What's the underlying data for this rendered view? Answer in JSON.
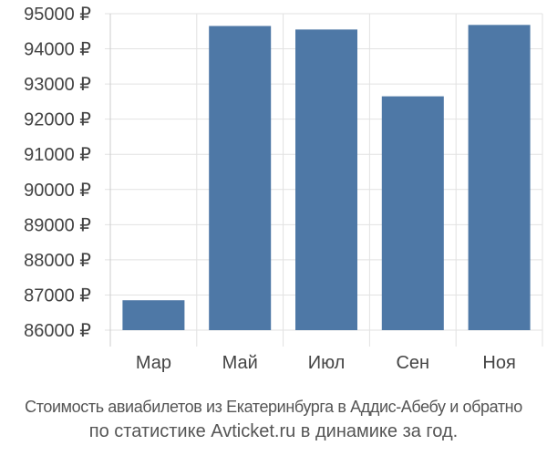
{
  "chart_data": {
    "type": "bar",
    "categories": [
      "Мар",
      "Май",
      "Июл",
      "Сен",
      "Ноя"
    ],
    "values": [
      86850,
      94650,
      94550,
      92650,
      94680
    ],
    "ylim": [
      86000,
      95000
    ],
    "yticks": [
      86000,
      87000,
      88000,
      89000,
      90000,
      91000,
      92000,
      93000,
      94000,
      95000
    ],
    "ytick_labels": [
      "86000 ₽",
      "87000 ₽",
      "88000 ₽",
      "89000 ₽",
      "90000 ₽",
      "91000 ₽",
      "92000 ₽",
      "93000 ₽",
      "94000 ₽",
      "95000 ₽"
    ],
    "grid": true,
    "bar_color": "#4e78a6",
    "caption_line1": "Стоимость авиабилетов из Екатеринбурга в Аддис-Абебу и обратно",
    "caption_line2": "по статистике Avticket.ru в динамике за год."
  }
}
